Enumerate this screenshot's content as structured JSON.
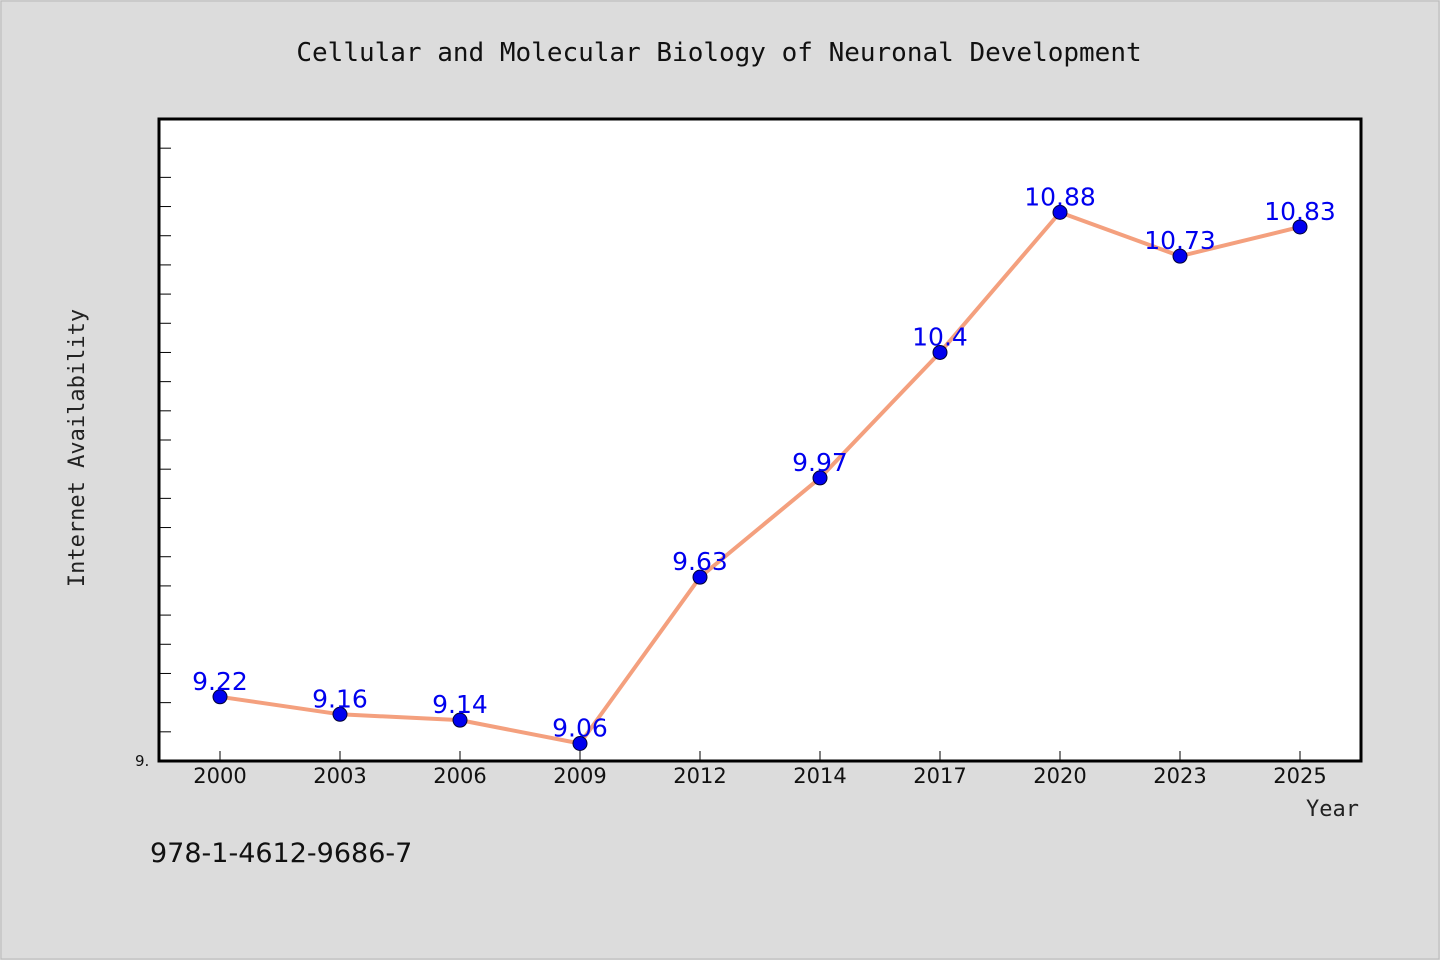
{
  "chart_data": {
    "type": "line",
    "title": "Cellular and Molecular Biology of Neuronal Development",
    "xlabel": "Year",
    "ylabel": "Internet Availability",
    "categories": [
      "2000",
      "2003",
      "2006",
      "2009",
      "2012",
      "2014",
      "2017",
      "2020",
      "2023",
      "2025"
    ],
    "series": [
      {
        "values": [
          9.22,
          9.16,
          9.14,
          9.06,
          9.63,
          9.97,
          10.4,
          10.88,
          10.73,
          10.83
        ],
        "data_labels": [
          "9.22",
          "9.16",
          "9.14",
          "9.06",
          "9.63",
          "9.97",
          "10.4",
          "10.88",
          "10.73",
          "10.83"
        ]
      }
    ],
    "ylim": [
      9.0,
      11.2
    ],
    "ytick_labels": [
      "9."
    ],
    "minor_ytick_step": 0.1,
    "grid": false,
    "line_color": "#f4a07e",
    "marker_color": "#0000ee",
    "label_color": "#0000ee"
  },
  "caption": "978-1-4612-9686-7"
}
